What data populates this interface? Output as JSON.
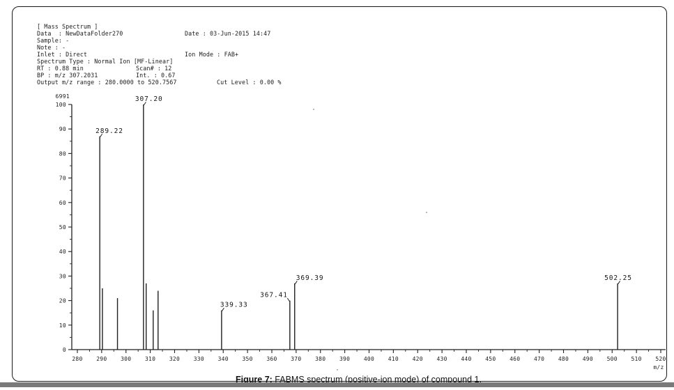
{
  "header": {
    "lines": [
      {
        "y": 24,
        "segments": [
          {
            "x": 35,
            "text": "[ Mass Spectrum ]"
          }
        ]
      },
      {
        "y": 34,
        "segments": [
          {
            "x": 35,
            "text": "Data  : NewDataFolder270"
          },
          {
            "x": 247,
            "text": "Date : 03-Jun-2015 14:47"
          }
        ]
      },
      {
        "y": 44,
        "segments": [
          {
            "x": 35,
            "text": "Sample: -"
          }
        ]
      },
      {
        "y": 54,
        "segments": [
          {
            "x": 35,
            "text": "Note : -"
          }
        ]
      },
      {
        "y": 64,
        "segments": [
          {
            "x": 35,
            "text": "Inlet : Direct"
          },
          {
            "x": 247,
            "text": "Ion Mode : FAB+"
          }
        ]
      },
      {
        "y": 74,
        "segments": [
          {
            "x": 35,
            "text": "Spectrum Type : Normal Ion [MF-Linear]"
          }
        ]
      },
      {
        "y": 84,
        "segments": [
          {
            "x": 35,
            "text": "RT : 0.88 min"
          },
          {
            "x": 177,
            "text": "Scan# : 12"
          }
        ]
      },
      {
        "y": 94,
        "segments": [
          {
            "x": 35,
            "text": "BP : m/z 307.2031"
          },
          {
            "x": 177,
            "text": "Int. : 0.67"
          }
        ]
      },
      {
        "y": 104,
        "segments": [
          {
            "x": 35,
            "text": "Output m/z range : 280.0000 to 520.7567"
          },
          {
            "x": 293,
            "text": "Cut Level : 0.00 %"
          }
        ]
      }
    ]
  },
  "chart_data": {
    "type": "bar",
    "subtype": "mass-spectrum-stick-plot",
    "title": "",
    "xlabel": "m/z",
    "ylabel": "",
    "xlim": [
      280,
      520
    ],
    "ylim": [
      0,
      100
    ],
    "x_tick_step": 10,
    "x_minor_tick_step": 5,
    "y_tick_step": 10,
    "y_minor_tick_step": 5,
    "x_tick_labels": [
      "280",
      "290",
      "300",
      "310",
      "320",
      "330",
      "340",
      "350",
      "360",
      "370",
      "380",
      "390",
      "400",
      "410",
      "420",
      "430",
      "440",
      "450",
      "460",
      "470",
      "480",
      "490",
      "500",
      "510",
      "520"
    ],
    "y_tick_labels": [
      "0",
      "10",
      "20",
      "30",
      "40",
      "50",
      "60",
      "70",
      "80",
      "90",
      "100"
    ],
    "base_peak_intensity": "6991",
    "grid": false,
    "legend": false,
    "peaks": [
      {
        "mz": 289.22,
        "intensity": 87,
        "label": "289.22",
        "label_dx": -6
      },
      {
        "mz": 290.3,
        "intensity": 25
      },
      {
        "mz": 296.5,
        "intensity": 21
      },
      {
        "mz": 307.2,
        "intensity": 100,
        "label": "307.20",
        "label_dx": -12
      },
      {
        "mz": 308.3,
        "intensity": 27
      },
      {
        "mz": 311.2,
        "intensity": 16
      },
      {
        "mz": 313.2,
        "intensity": 24
      },
      {
        "mz": 339.33,
        "intensity": 16,
        "label": "339.33",
        "label_dx": -2
      },
      {
        "mz": 367.41,
        "intensity": 20,
        "label": "367.41",
        "label_side": "left",
        "label_dx": -3
      },
      {
        "mz": 369.39,
        "intensity": 27,
        "label": "369.39",
        "label_dx": 2
      },
      {
        "mz": 502.25,
        "intensity": 27,
        "label": "502.25",
        "label_dx": -19
      }
    ],
    "ink_color": "#1f1f1f"
  },
  "caption": {
    "bold": "Figure 7:",
    "text": " FABMS spectrum (positive-ion mode) of compound 1."
  }
}
